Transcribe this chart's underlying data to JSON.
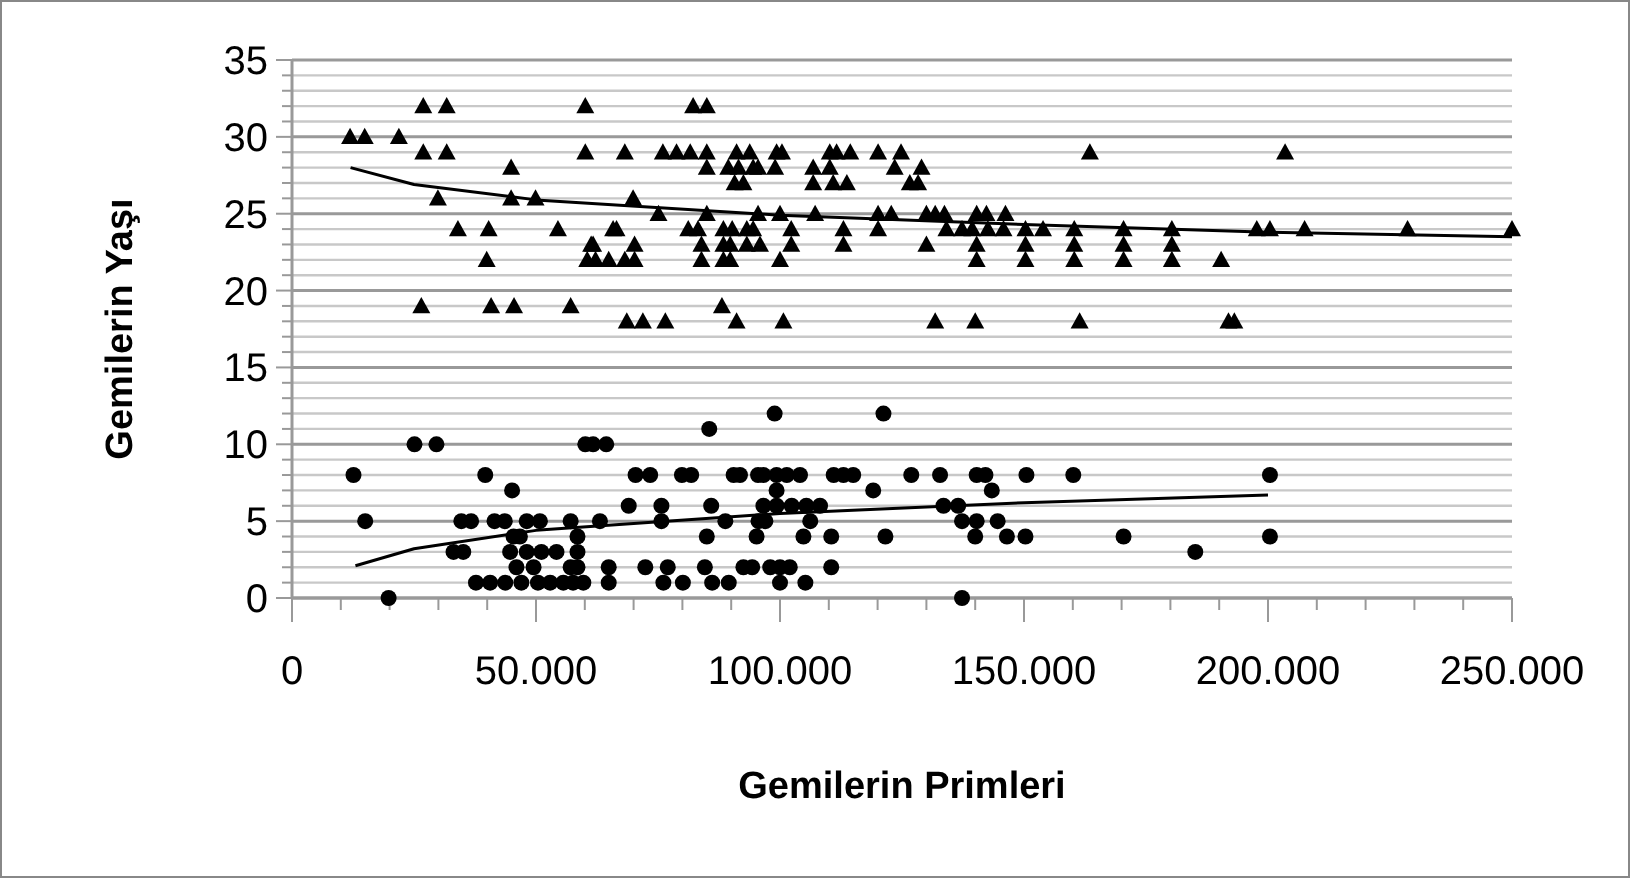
{
  "chart_data": {
    "type": "scatter",
    "xlabel": "Gemilerin Primleri",
    "ylabel": "Gemilerin Yaşı",
    "xlim": [
      0,
      250000
    ],
    "ylim": [
      0,
      35
    ],
    "xticks": [
      {
        "value": 0,
        "label": "0"
      },
      {
        "value": 10000,
        "label": null
      },
      {
        "value": 20000,
        "label": null
      },
      {
        "value": 30000,
        "label": null
      },
      {
        "value": 40000,
        "label": null
      },
      {
        "value": 50000,
        "label": "50.000"
      },
      {
        "value": 60000,
        "label": null
      },
      {
        "value": 70000,
        "label": null
      },
      {
        "value": 80000,
        "label": null
      },
      {
        "value": 90000,
        "label": null
      },
      {
        "value": 100000,
        "label": "100.000"
      },
      {
        "value": 110000,
        "label": null
      },
      {
        "value": 120000,
        "label": null
      },
      {
        "value": 130000,
        "label": null
      },
      {
        "value": 140000,
        "label": null
      },
      {
        "value": 150000,
        "label": "150.000"
      },
      {
        "value": 160000,
        "label": null
      },
      {
        "value": 170000,
        "label": null
      },
      {
        "value": 180000,
        "label": null
      },
      {
        "value": 190000,
        "label": null
      },
      {
        "value": 200000,
        "label": "200.000"
      },
      {
        "value": 210000,
        "label": null
      },
      {
        "value": 220000,
        "label": null
      },
      {
        "value": 230000,
        "label": null
      },
      {
        "value": 240000,
        "label": null
      },
      {
        "value": 250000,
        "label": "250.000"
      }
    ],
    "yticks": [
      0,
      {
        "value": 1,
        "label": null
      },
      {
        "value": 2,
        "label": null
      },
      {
        "value": 3,
        "label": null
      },
      {
        "value": 4,
        "label": null
      },
      5,
      {
        "value": 6,
        "label": null
      },
      {
        "value": 7,
        "label": null
      },
      {
        "value": 8,
        "label": null
      },
      {
        "value": 9,
        "label": null
      },
      10,
      {
        "value": 11,
        "label": null
      },
      {
        "value": 12,
        "label": null
      },
      {
        "value": 13,
        "label": null
      },
      {
        "value": 14,
        "label": null
      },
      15,
      {
        "value": 16,
        "label": null
      },
      {
        "value": 17,
        "label": null
      },
      {
        "value": 18,
        "label": null
      },
      {
        "value": 19,
        "label": null
      },
      20,
      {
        "value": 21,
        "label": null
      },
      {
        "value": 22,
        "label": null
      },
      {
        "value": 23,
        "label": null
      },
      {
        "value": 24,
        "label": null
      },
      25,
      {
        "value": 26,
        "label": null
      },
      {
        "value": 27,
        "label": null
      },
      {
        "value": 28,
        "label": null
      },
      {
        "value": 29,
        "label": null
      },
      30,
      {
        "value": 31,
        "label": null
      },
      {
        "value": 32,
        "label": null
      },
      {
        "value": 33,
        "label": null
      },
      {
        "value": 34,
        "label": null
      },
      35
    ],
    "grid": "y",
    "series": [
      {
        "marker": "triangle",
        "color": "#000000",
        "x": [
          11900,
          14900,
          21900,
          26900,
          31700,
          26900,
          31700,
          29900,
          34000,
          40300,
          39900,
          26500,
          40800,
          45500,
          44900,
          44900,
          49900,
          54500,
          57100,
          60100,
          60100,
          60500,
          61300,
          62200,
          61700,
          65800,
          66500,
          64900,
          68200,
          70200,
          70200,
          69900,
          68200,
          68600,
          71900,
          76500,
          75100,
          76000,
          78800,
          81600,
          82200,
          85000,
          85000,
          85000,
          85000,
          81200,
          83200,
          83900,
          83900,
          88100,
          91100,
          88400,
          88400,
          88400,
          89800,
          90200,
          89800,
          89400,
          91100,
          93800,
          91500,
          90700,
          92500,
          93200,
          93200,
          94500,
          94500,
          95500,
          95500,
          95900,
          99300,
          100400,
          99000,
          100000,
          100000,
          100700,
          102300,
          102300,
          106800,
          106800,
          107200,
          110200,
          111600,
          110200,
          110900,
          113700,
          113000,
          113000,
          114400,
          120100,
          124800,
          123500,
          129000,
          128300,
          126600,
          120100,
          122800,
          120100,
          130000,
          131800,
          133700,
          134100,
          130000,
          137300,
          140300,
          142300,
          139400,
          142600,
          146200,
          145800,
          150300,
          153900,
          140300,
          140300,
          150300,
          150300,
          160300,
          160300,
          160300,
          170400,
          170400,
          170400,
          180300,
          180300,
          180300,
          190400,
          197700,
          200400,
          207500,
          228600,
          250000,
          163500,
          203500,
          131800,
          140000,
          161400,
          191900,
          193100
        ],
        "values": [
          30,
          30,
          30,
          32,
          32,
          29,
          29,
          26,
          24,
          24,
          22,
          19,
          19,
          19,
          28,
          26,
          26,
          24,
          19,
          32,
          29,
          22,
          23,
          22,
          23,
          24,
          24,
          22,
          22,
          22,
          23,
          26,
          29,
          18,
          18,
          18,
          25,
          29,
          29,
          29,
          32,
          32,
          29,
          28,
          25,
          24,
          24,
          23,
          22,
          19,
          18,
          24,
          23,
          22,
          22,
          24,
          23,
          28,
          29,
          29,
          28,
          27,
          27,
          24,
          23,
          24,
          28,
          28,
          25,
          23,
          29,
          29,
          28,
          25,
          22,
          18,
          24,
          23,
          28,
          27,
          25,
          29,
          29,
          28,
          27,
          27,
          24,
          23,
          29,
          29,
          29,
          28,
          28,
          27,
          27,
          25,
          25,
          24,
          25,
          25,
          25,
          24,
          23,
          24,
          25,
          25,
          24,
          24,
          25,
          24,
          24,
          24,
          23,
          22,
          23,
          22,
          24,
          23,
          22,
          24,
          23,
          22,
          24,
          23,
          22,
          22,
          24,
          24,
          24,
          24,
          24,
          29,
          29,
          18,
          18,
          18,
          18,
          18
        ]
      },
      {
        "marker": "circle",
        "color": "#000000",
        "x": [
          12600,
          15000,
          19800,
          25100,
          29600,
          33100,
          35100,
          34700,
          36700,
          39600,
          37700,
          40600,
          41500,
          43600,
          43700,
          45100,
          45400,
          46700,
          44700,
          48100,
          46000,
          49500,
          47000,
          48100,
          50800,
          51100,
          50400,
          52900,
          54200,
          55600,
          57100,
          58500,
          58500,
          58500,
          57100,
          57600,
          59700,
          60100,
          61700,
          64400,
          63100,
          64900,
          64900,
          69000,
          70400,
          73400,
          75700,
          75700,
          72400,
          77000,
          76100,
          80100,
          79900,
          81800,
          85500,
          85900,
          85000,
          84600,
          86100,
          89500,
          88800,
          90500,
          91800,
          95500,
          96600,
          98900,
          99300,
          101400,
          104100,
          99300,
          96600,
          99300,
          102400,
          105400,
          108200,
          95600,
          97000,
          106200,
          95200,
          104800,
          110500,
          92500,
          94300,
          98000,
          100000,
          102000,
          110500,
          100000,
          105200,
          111000,
          113000,
          121200,
          115000,
          119100,
          126900,
          132800,
          140300,
          142100,
          143400,
          150500,
          160100,
          200400,
          133500,
          136500,
          137300,
          140300,
          144600,
          121600,
          140000,
          146500,
          150300,
          170400,
          200400,
          185100,
          137300
        ],
        "values": [
          8,
          5,
          0,
          10,
          10,
          3,
          3,
          5,
          5,
          8,
          1,
          1,
          5,
          5,
          1,
          7,
          4,
          4,
          3,
          3,
          2,
          2,
          1,
          5,
          5,
          3,
          1,
          1,
          3,
          1,
          5,
          4,
          3,
          2,
          2,
          1,
          1,
          10,
          10,
          10,
          5,
          2,
          1,
          6,
          8,
          8,
          6,
          5,
          2,
          2,
          1,
          1,
          8,
          8,
          11,
          6,
          4,
          2,
          1,
          1,
          5,
          8,
          8,
          8,
          8,
          12,
          8,
          8,
          8,
          7,
          6,
          6,
          6,
          6,
          6,
          5,
          5,
          5,
          4,
          4,
          4,
          2,
          2,
          2,
          2,
          2,
          2,
          1,
          1,
          8,
          8,
          12,
          8,
          7,
          8,
          8,
          8,
          8,
          7,
          8,
          8,
          8,
          6,
          6,
          5,
          5,
          5,
          4,
          4,
          4,
          4,
          4,
          4,
          3,
          0
        ]
      },
      {
        "type": "line",
        "marker": "none",
        "line_style": "solid",
        "color": "#000000",
        "x": [
          12000,
          25000,
          50000,
          100000,
          150000,
          200000,
          250000
        ],
        "values": [
          28,
          26.9,
          25.9,
          24.9,
          24.3,
          23.8,
          23.5
        ]
      },
      {
        "type": "line",
        "marker": "none",
        "line_style": "solid",
        "color": "#000000",
        "x": [
          13000,
          25000,
          50000,
          100000,
          150000,
          200000
        ],
        "values": [
          2.1,
          3.2,
          4.4,
          5.5,
          6.2,
          6.7
        ]
      }
    ]
  }
}
